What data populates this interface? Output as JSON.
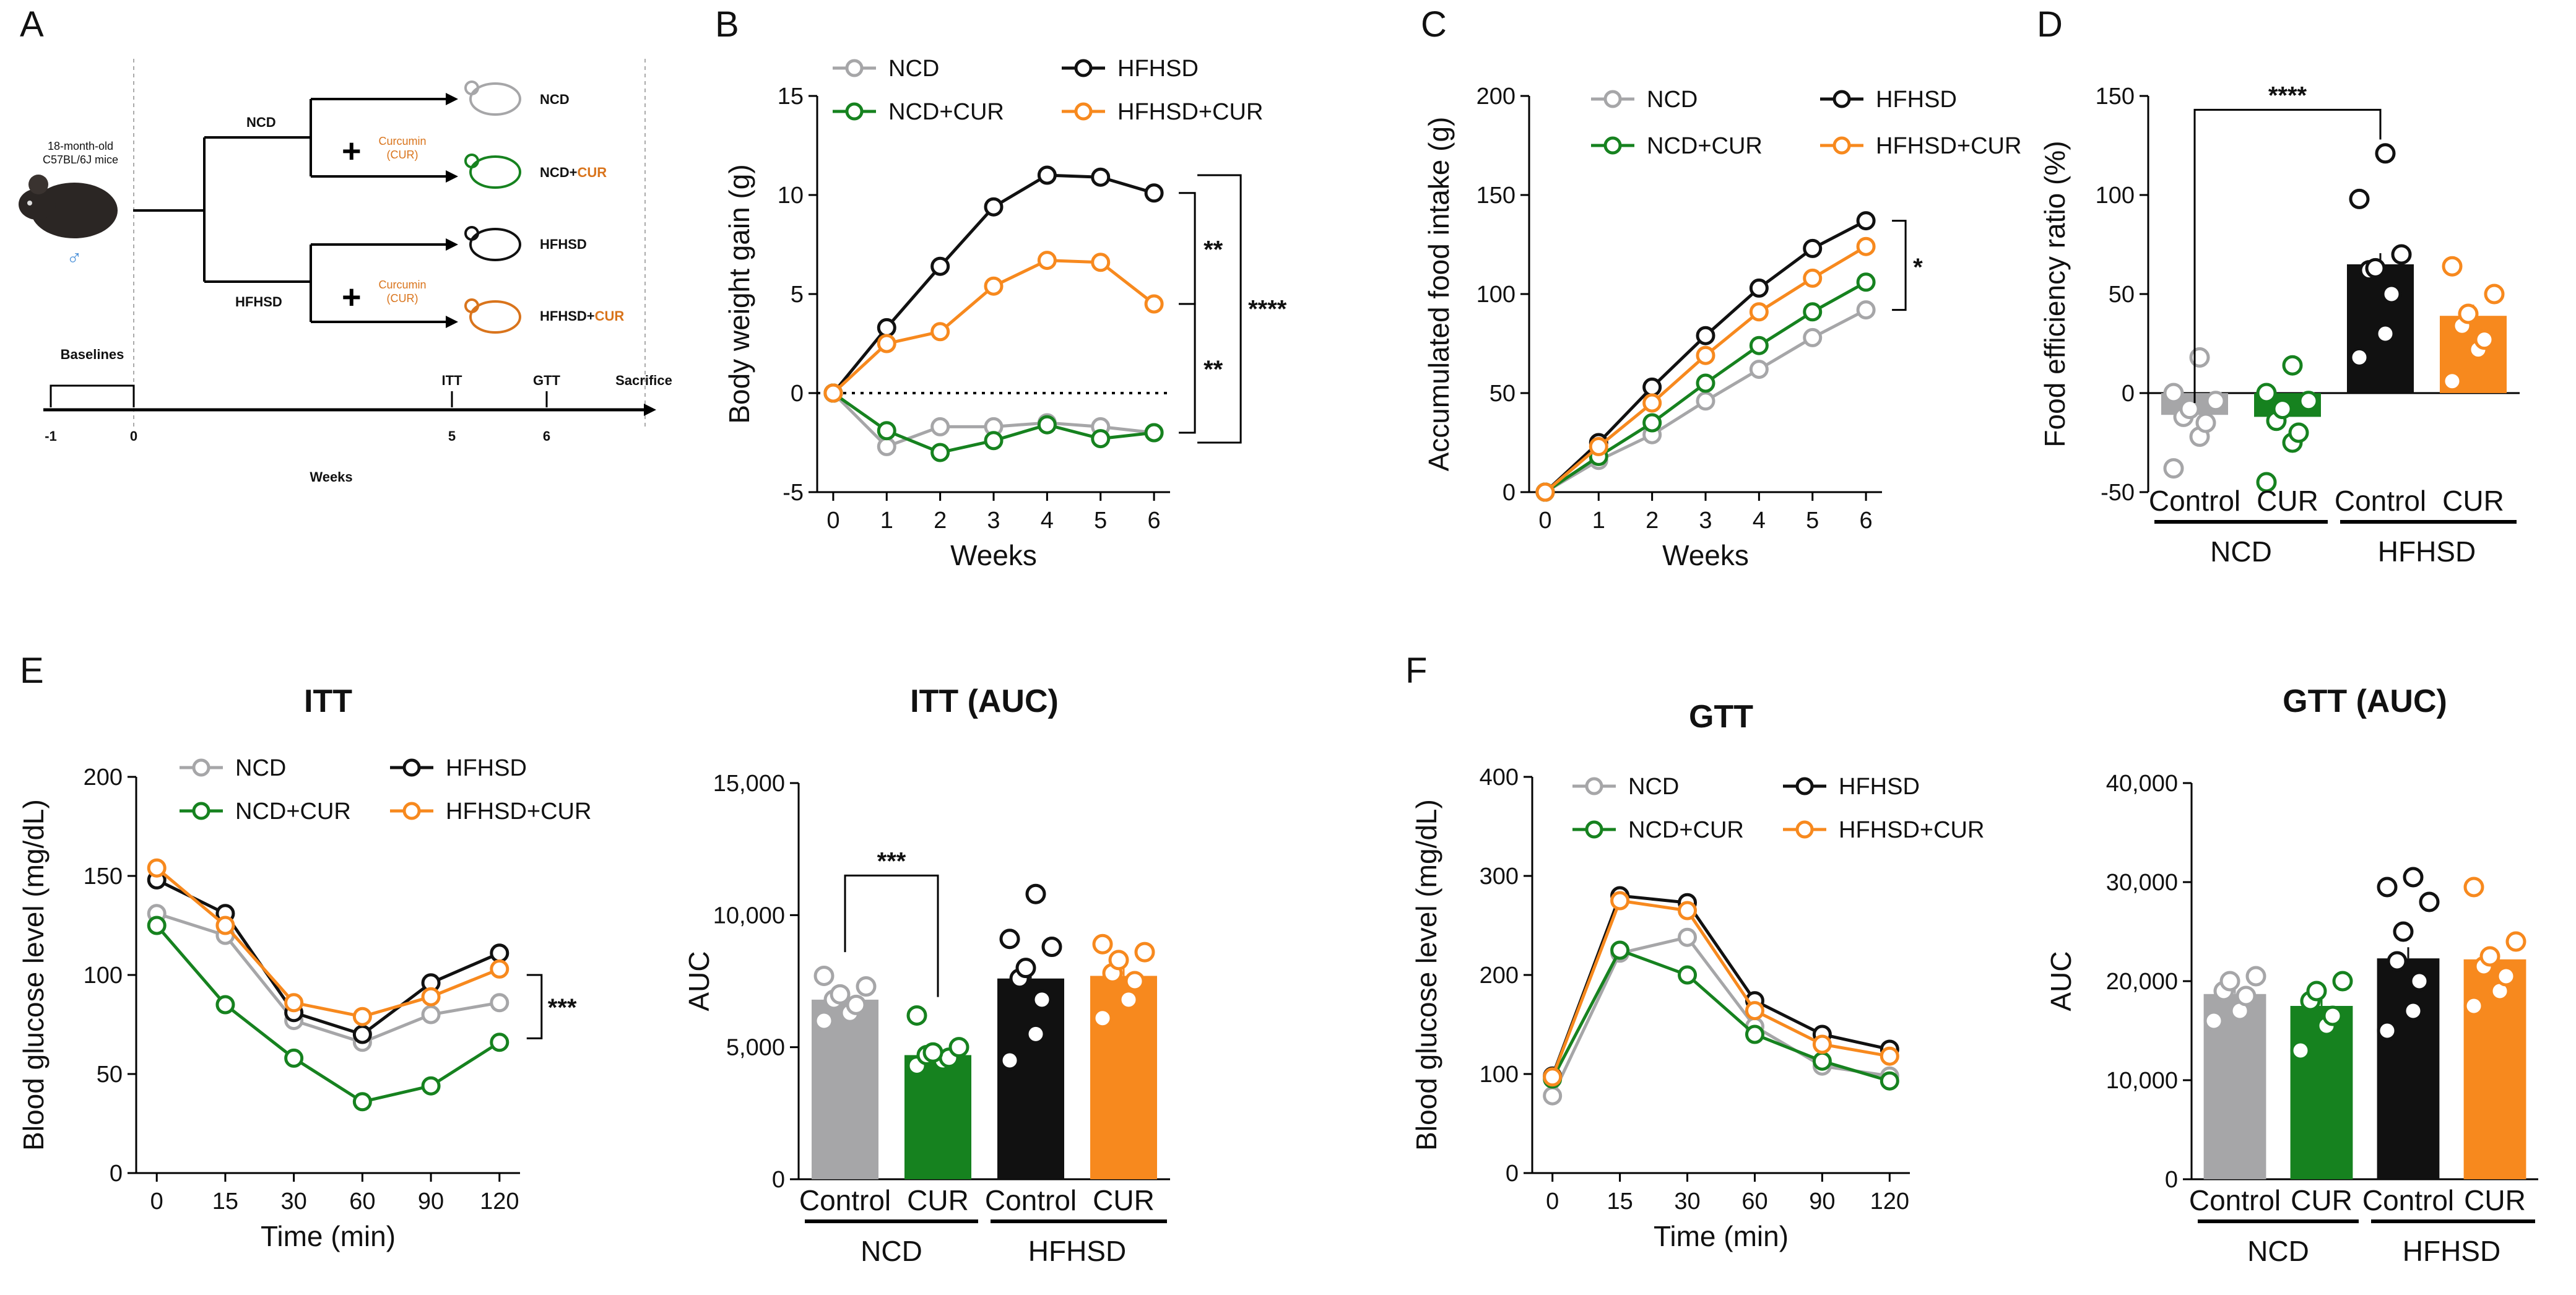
{
  "colors": {
    "ncd": "#a6a6a8",
    "ncd_cur": "#16821f",
    "hfhsd": "#111111",
    "hfhsd_cur": "#f7891e",
    "cur_text": "#d9741c"
  },
  "panels": {
    "A": "A",
    "B": "B",
    "C": "C",
    "D": "D",
    "E": "E",
    "F": "F"
  },
  "legend": {
    "ncd": "NCD",
    "ncd_cur": "NCD+CUR",
    "hfhsd": "HFHSD",
    "hfhsd_cur": "HFHSD+CUR"
  },
  "groups": {
    "control": "Control",
    "cur": "CUR",
    "ncd": "NCD",
    "hfhsd": "HFHSD"
  },
  "schematic": {
    "mouse_label_1": "18-month-old",
    "mouse_label_2": "C57BL/6J mice",
    "sex_symbol": "♂",
    "branch_ncd": "NCD",
    "branch_hfhsd": "HFHSD",
    "curcumin_1": "Curcumin",
    "curcumin_2": "(CUR)",
    "plus": "+",
    "out_ncd": "NCD",
    "out_ncd_cur_a": "NCD+",
    "out_ncd_cur_b": "CUR",
    "out_hfhsd": "HFHSD",
    "out_hfhsd_cur_a": "HFHSD+",
    "out_hfhsd_cur_b": "CUR",
    "baselines": "Baselines",
    "itt": "ITT",
    "gtt": "GTT",
    "sacrifice": "Sacrifice",
    "t_m1": "-1",
    "t_0": "0",
    "t_5": "5",
    "t_6": "6",
    "weeks": "Weeks"
  },
  "chart_data": [
    {
      "id": "B",
      "type": "line",
      "title": "",
      "xlabel": "Weeks",
      "ylabel": "Body weight gain (g)",
      "x": [
        0,
        1,
        2,
        3,
        4,
        5,
        6
      ],
      "xticks": [
        "0",
        "1",
        "2",
        "3",
        "4",
        "5",
        "6"
      ],
      "ylim": [
        -5,
        15
      ],
      "yticks": [
        "-5",
        "0",
        "5",
        "10",
        "15"
      ],
      "series": [
        {
          "name": "NCD",
          "values": [
            0,
            -2.7,
            -1.7,
            -1.7,
            -1.5,
            -1.7,
            -2.0
          ]
        },
        {
          "name": "HFHSD",
          "values": [
            0,
            3.3,
            6.4,
            9.4,
            11.0,
            10.9,
            10.1
          ]
        },
        {
          "name": "NCD+CUR",
          "values": [
            0,
            -1.9,
            -3.0,
            -2.4,
            -1.6,
            -2.3,
            -2.0
          ]
        },
        {
          "name": "HFHSD+CUR",
          "values": [
            0,
            2.5,
            3.1,
            5.4,
            6.7,
            6.6,
            4.5
          ]
        }
      ],
      "significance": [
        "**",
        "**",
        "****"
      ]
    },
    {
      "id": "C",
      "type": "line",
      "title": "",
      "xlabel": "Weeks",
      "ylabel": "Accumulated food intake (g)",
      "x": [
        0,
        1,
        2,
        3,
        4,
        5,
        6
      ],
      "xticks": [
        "0",
        "1",
        "2",
        "3",
        "4",
        "5",
        "6"
      ],
      "ylim": [
        0,
        200
      ],
      "yticks": [
        "0",
        "50",
        "100",
        "150",
        "200"
      ],
      "series": [
        {
          "name": "NCD",
          "values": [
            0,
            16,
            29,
            46,
            62,
            78,
            92
          ]
        },
        {
          "name": "HFHSD",
          "values": [
            0,
            25,
            53,
            79,
            103,
            123,
            137
          ]
        },
        {
          "name": "NCD+CUR",
          "values": [
            0,
            18,
            35,
            55,
            74,
            91,
            106
          ]
        },
        {
          "name": "HFHSD+CUR",
          "values": [
            0,
            23,
            45,
            69,
            91,
            108,
            124
          ]
        }
      ],
      "significance": [
        "*"
      ]
    },
    {
      "id": "D",
      "type": "bar",
      "title": "",
      "ylabel": "Food efficiency ratio (%)",
      "ylim": [
        -50,
        150
      ],
      "yticks": [
        "-50",
        "0",
        "50",
        "100",
        "150"
      ],
      "categories": [
        "Control",
        "CUR",
        "Control",
        "CUR"
      ],
      "group_labels": [
        "NCD",
        "HFHSD"
      ],
      "values": [
        -11,
        -12,
        65,
        39
      ],
      "points": [
        [
          -38,
          -22,
          -15,
          -12,
          -8,
          -4,
          0,
          18
        ],
        [
          -45,
          -25,
          -20,
          -14,
          -8,
          -4,
          0,
          14
        ],
        [
          18,
          30,
          50,
          62,
          63,
          70,
          98,
          121
        ],
        [
          6,
          22,
          27,
          34,
          40,
          50,
          64
        ]
      ],
      "significance": [
        "****"
      ]
    },
    {
      "id": "E-ITT",
      "type": "line",
      "title": "ITT",
      "xlabel": "Time (min)",
      "ylabel": "Blood glucose level (mg/dL)",
      "x": [
        0,
        15,
        30,
        60,
        90,
        120
      ],
      "xticks": [
        "0",
        "15",
        "30",
        "60",
        "90",
        "120"
      ],
      "ylim": [
        0,
        200
      ],
      "yticks": [
        "0",
        "50",
        "100",
        "150",
        "200"
      ],
      "series": [
        {
          "name": "NCD",
          "values": [
            131,
            120,
            77,
            66,
            80,
            86
          ]
        },
        {
          "name": "HFHSD",
          "values": [
            148,
            131,
            81,
            70,
            96,
            111
          ]
        },
        {
          "name": "NCD+CUR",
          "values": [
            125,
            85,
            58,
            36,
            44,
            66
          ]
        },
        {
          "name": "HFHSD+CUR",
          "values": [
            154,
            125,
            86,
            79,
            89,
            103
          ]
        }
      ],
      "significance": [
        "***"
      ]
    },
    {
      "id": "E-AUC",
      "type": "bar",
      "title": "ITT (AUC)",
      "ylabel": "AUC",
      "ylim": [
        0,
        15000
      ],
      "yticks": [
        "0",
        "5,000",
        "10,000",
        "15,000"
      ],
      "categories": [
        "Control",
        "CUR",
        "Control",
        "CUR"
      ],
      "group_labels": [
        "NCD",
        "HFHSD"
      ],
      "values": [
        6800,
        4700,
        7600,
        7700
      ],
      "points": [
        [
          6000,
          6300,
          6600,
          6800,
          7000,
          7300,
          7700
        ],
        [
          4300,
          4500,
          4600,
          4700,
          4800,
          5000,
          6200
        ],
        [
          4500,
          5500,
          6800,
          7600,
          8000,
          8800,
          9100,
          10800
        ],
        [
          6100,
          6800,
          7500,
          7800,
          8300,
          8600,
          8900
        ]
      ],
      "significance": [
        "***"
      ]
    },
    {
      "id": "F-GTT",
      "type": "line",
      "title": "GTT",
      "xlabel": "Time (min)",
      "ylabel": "Blood glucose level (mg/dL)",
      "x": [
        0,
        15,
        30,
        60,
        90,
        120
      ],
      "xticks": [
        "0",
        "15",
        "30",
        "60",
        "90",
        "120"
      ],
      "ylim": [
        0,
        400
      ],
      "yticks": [
        "0",
        "100",
        "200",
        "300",
        "400"
      ],
      "series": [
        {
          "name": "NCD",
          "values": [
            78,
            222,
            238,
            148,
            108,
            98
          ]
        },
        {
          "name": "HFHSD",
          "values": [
            98,
            280,
            273,
            174,
            140,
            125
          ]
        },
        {
          "name": "NCD+CUR",
          "values": [
            95,
            225,
            200,
            140,
            113,
            93
          ]
        },
        {
          "name": "HFHSD+CUR",
          "values": [
            97,
            275,
            265,
            164,
            130,
            118
          ]
        }
      ]
    },
    {
      "id": "F-AUC",
      "type": "bar",
      "title": "GTT (AUC)",
      "ylabel": "AUC",
      "ylim": [
        0,
        40000
      ],
      "yticks": [
        "0",
        "10,000",
        "20,000",
        "30,000",
        "40,000"
      ],
      "categories": [
        "Control",
        "CUR",
        "Control",
        "CUR"
      ],
      "group_labels": [
        "NCD",
        "HFHSD"
      ],
      "values": [
        18700,
        17500,
        22300,
        22200
      ],
      "points": [
        [
          16000,
          17000,
          18500,
          19000,
          20000,
          20500
        ],
        [
          13000,
          15500,
          16500,
          18000,
          19000,
          20000
        ],
        [
          15000,
          17000,
          20000,
          22000,
          25000,
          28000,
          29500,
          30500
        ],
        [
          17500,
          19000,
          20500,
          21500,
          22500,
          24000,
          29500
        ]
      ]
    }
  ]
}
